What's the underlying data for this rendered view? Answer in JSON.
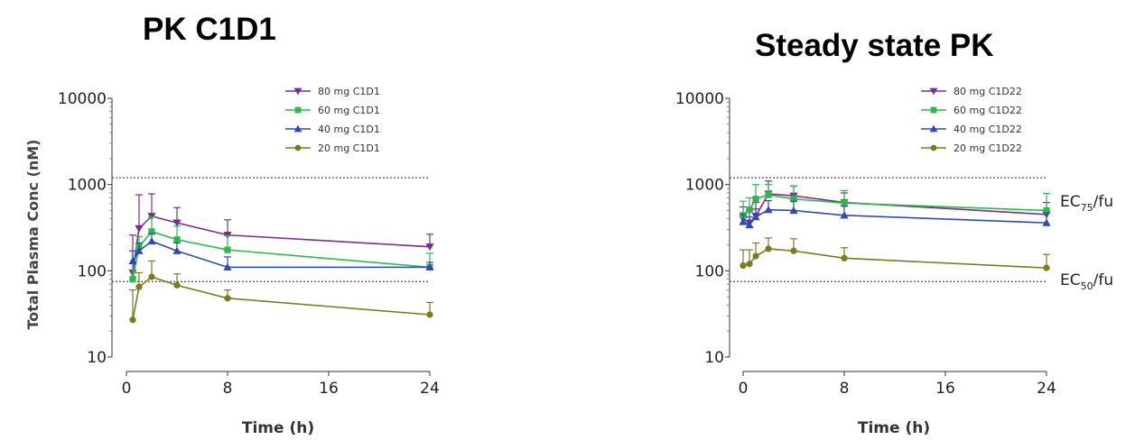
{
  "chart_data": [
    {
      "type": "line",
      "title": "PK C1D1",
      "xlabel": "Time (h)",
      "ylabel": "Total Plasma Conc (nM)",
      "yscale": "log",
      "xlim": [
        0,
        24
      ],
      "ylim": [
        10,
        10000
      ],
      "xticks": [
        "0",
        "8",
        "16",
        "24"
      ],
      "yticks": [
        "10",
        "100",
        "1000",
        "10000"
      ],
      "grid": false,
      "legend_position": "top-right",
      "reference_lines": [
        1200,
        75
      ],
      "series": [
        {
          "name": "80 mg C1D1",
          "color": "#7b2d8e",
          "marker": "triangle-down",
          "x": [
            0.5,
            1,
            2,
            4,
            8,
            24
          ],
          "y": [
            95,
            310,
            430,
            360,
            260,
            190
          ],
          "err": [
            260,
            760,
            780,
            540,
            390,
            265
          ]
        },
        {
          "name": "60 mg C1D1",
          "color": "#2db84c",
          "marker": "square",
          "x": [
            0.5,
            1,
            2,
            4,
            8,
            24
          ],
          "y": [
            80,
            190,
            285,
            230,
            175,
            110
          ],
          "err": [
            170,
            250,
            420,
            330,
            255,
            160
          ]
        },
        {
          "name": "40 mg C1D1",
          "color": "#2e4bb5",
          "marker": "triangle-up",
          "x": [
            0.5,
            1,
            2,
            4,
            8,
            24
          ],
          "y": [
            130,
            170,
            220,
            170,
            110,
            110
          ],
          "err": [
            170,
            210,
            270,
            210,
            145,
            125
          ]
        },
        {
          "name": "20 mg C1D1",
          "color": "#7a7a1f",
          "marker": "circle",
          "x": [
            0.5,
            1,
            2,
            4,
            8,
            24
          ],
          "y": [
            27,
            65,
            85,
            68,
            48,
            31
          ],
          "err": [
            60,
            95,
            130,
            92,
            60,
            43
          ]
        }
      ]
    },
    {
      "type": "line",
      "title": "Steady state PK",
      "xlabel": "Time (h)",
      "ylabel": "",
      "yscale": "log",
      "xlim": [
        0,
        24
      ],
      "ylim": [
        10,
        10000
      ],
      "xticks": [
        "0",
        "8",
        "16",
        "24"
      ],
      "yticks": [
        "10",
        "100",
        "1000",
        "10000"
      ],
      "grid": false,
      "legend_position": "top-right",
      "reference_lines": [
        {
          "value": 1200,
          "label_main": "EC",
          "label_sub": "75",
          "label_tail": "/fu"
        },
        {
          "value": 75,
          "label_main": "EC",
          "label_sub": "50",
          "label_tail": "/fu"
        }
      ],
      "series": [
        {
          "name": "80 mg C1D22",
          "color": "#7b2d8e",
          "marker": "triangle-down",
          "x": [
            0,
            0.5,
            1,
            2,
            4,
            8,
            24
          ],
          "y": [
            400,
            360,
            430,
            780,
            740,
            620,
            450
          ],
          "err": [
            550,
            500,
            620,
            1100,
            960,
            800,
            620
          ]
        },
        {
          "name": "60 mg C1D22",
          "color": "#2db84c",
          "marker": "square",
          "x": [
            0,
            0.5,
            1,
            2,
            4,
            8,
            24
          ],
          "y": [
            440,
            510,
            680,
            760,
            680,
            610,
            500
          ],
          "err": [
            640,
            700,
            1000,
            1000,
            960,
            850,
            790
          ]
        },
        {
          "name": "40 mg C1D22",
          "color": "#2e4bb5",
          "marker": "triangle-up",
          "x": [
            0,
            0.5,
            1,
            2,
            4,
            8,
            24
          ],
          "y": [
            370,
            340,
            420,
            510,
            500,
            440,
            360
          ],
          "err": [
            450,
            420,
            520,
            650,
            640,
            560,
            470
          ]
        },
        {
          "name": "20 mg C1D22",
          "color": "#7a7a1f",
          "marker": "circle",
          "x": [
            0,
            0.5,
            1,
            2,
            4,
            8,
            24
          ],
          "y": [
            115,
            120,
            148,
            180,
            170,
            140,
            108
          ],
          "err": [
            175,
            175,
            210,
            240,
            235,
            185,
            155
          ]
        }
      ]
    }
  ]
}
